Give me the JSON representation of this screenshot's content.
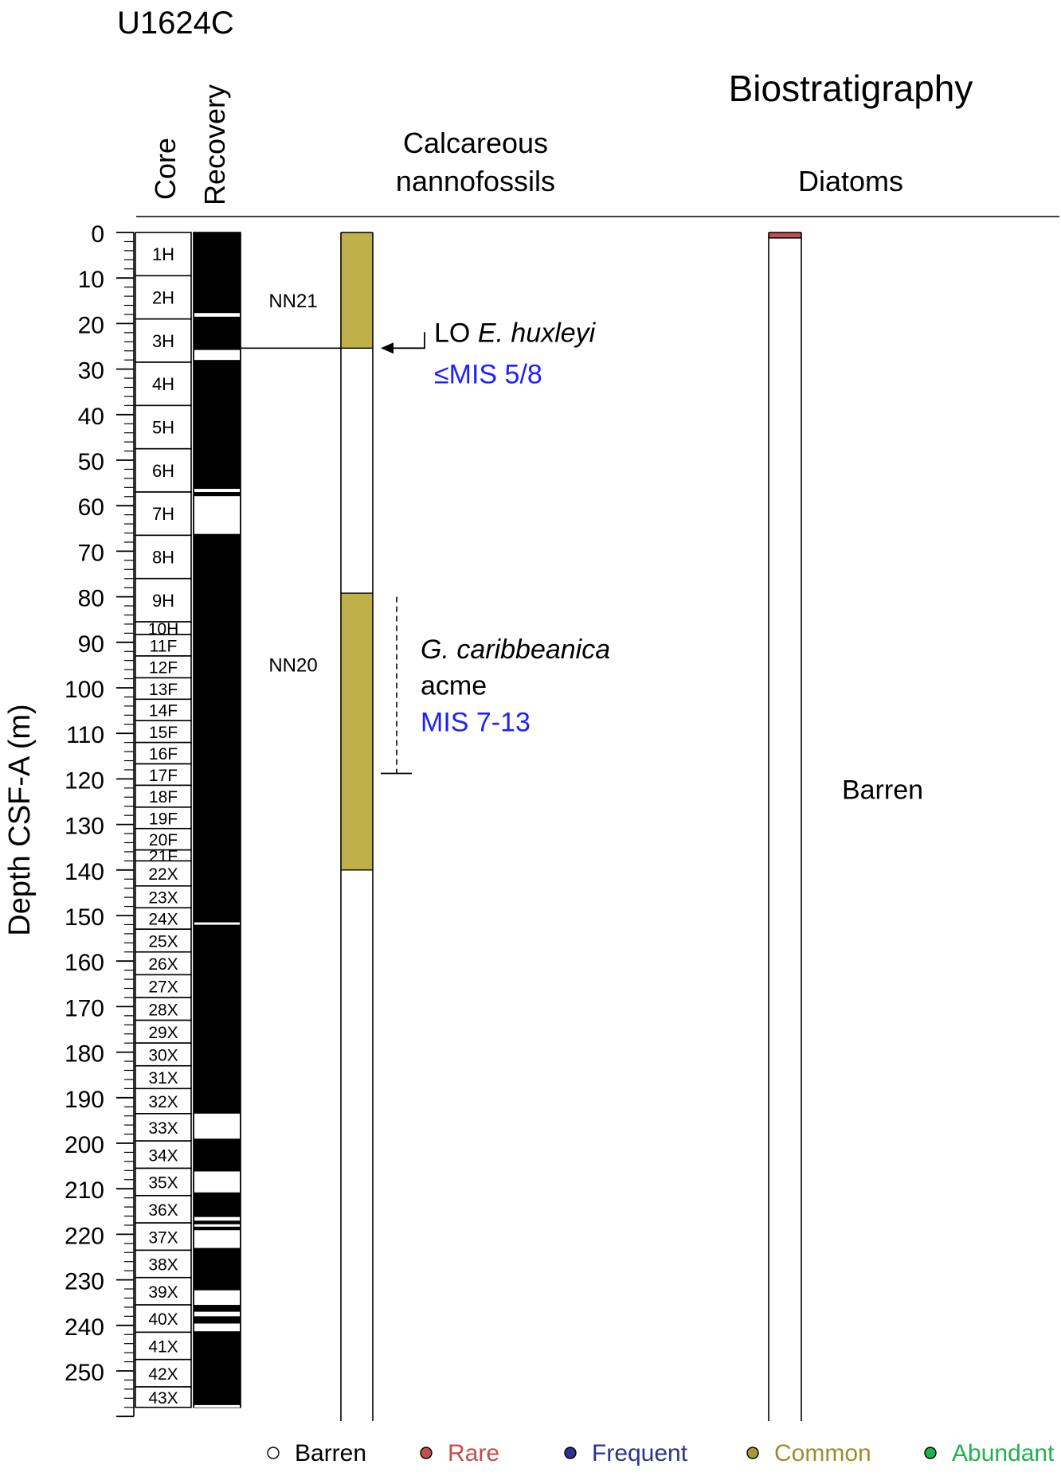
{
  "site": "U1624C",
  "headers": {
    "core": "Core",
    "recovery": "Recovery",
    "biostratigraphy": "Biostratigraphy",
    "calcareous_line1": "Calcareous",
    "calcareous_line2": "nannofossils",
    "diatoms": "Diatoms"
  },
  "chart_data": {
    "type": "stratigraphic-column",
    "ylabel": "Depth CSF-A (m)",
    "ylim": [
      0,
      260
    ],
    "yticks": [
      0,
      10,
      20,
      30,
      40,
      50,
      60,
      70,
      80,
      90,
      100,
      110,
      120,
      130,
      140,
      150,
      160,
      170,
      180,
      190,
      200,
      210,
      220,
      230,
      240,
      250
    ],
    "y_inverted": true,
    "cores": [
      {
        "label": "1H",
        "top": 0,
        "bottom": 9.5
      },
      {
        "label": "2H",
        "top": 9.5,
        "bottom": 19
      },
      {
        "label": "3H",
        "top": 19,
        "bottom": 28.5
      },
      {
        "label": "4H",
        "top": 28.5,
        "bottom": 38
      },
      {
        "label": "5H",
        "top": 38,
        "bottom": 47.5
      },
      {
        "label": "6H",
        "top": 47.5,
        "bottom": 57
      },
      {
        "label": "7H",
        "top": 57,
        "bottom": 66.5
      },
      {
        "label": "8H",
        "top": 66.5,
        "bottom": 76
      },
      {
        "label": "9H",
        "top": 76,
        "bottom": 85.5
      },
      {
        "label": "10H",
        "top": 85.5,
        "bottom": 88.3
      },
      {
        "label": "11F",
        "top": 88.3,
        "bottom": 93
      },
      {
        "label": "12F",
        "top": 93,
        "bottom": 97.8
      },
      {
        "label": "13F",
        "top": 97.8,
        "bottom": 102.5
      },
      {
        "label": "14F",
        "top": 102.5,
        "bottom": 107.2
      },
      {
        "label": "15F",
        "top": 107.2,
        "bottom": 112
      },
      {
        "label": "16F",
        "top": 112,
        "bottom": 116.7
      },
      {
        "label": "17F",
        "top": 116.7,
        "bottom": 121.4
      },
      {
        "label": "18F",
        "top": 121.4,
        "bottom": 126.2
      },
      {
        "label": "19F",
        "top": 126.2,
        "bottom": 130.9
      },
      {
        "label": "20F",
        "top": 130.9,
        "bottom": 135.6
      },
      {
        "label": "21F",
        "top": 135.6,
        "bottom": 138
      },
      {
        "label": "22X",
        "top": 138,
        "bottom": 143.5
      },
      {
        "label": "23X",
        "top": 143.5,
        "bottom": 148.3
      },
      {
        "label": "24X",
        "top": 148.3,
        "bottom": 153
      },
      {
        "label": "25X",
        "top": 153,
        "bottom": 158
      },
      {
        "label": "26X",
        "top": 158,
        "bottom": 163
      },
      {
        "label": "27X",
        "top": 163,
        "bottom": 168
      },
      {
        "label": "28X",
        "top": 168,
        "bottom": 173
      },
      {
        "label": "29X",
        "top": 173,
        "bottom": 178
      },
      {
        "label": "30X",
        "top": 178,
        "bottom": 183
      },
      {
        "label": "31X",
        "top": 183,
        "bottom": 188
      },
      {
        "label": "32X",
        "top": 188,
        "bottom": 193.5
      },
      {
        "label": "33X",
        "top": 193.5,
        "bottom": 199.5
      },
      {
        "label": "34X",
        "top": 199.5,
        "bottom": 205.5
      },
      {
        "label": "35X",
        "top": 205.5,
        "bottom": 211.5
      },
      {
        "label": "36X",
        "top": 211.5,
        "bottom": 217.5
      },
      {
        "label": "37X",
        "top": 217.5,
        "bottom": 223.5
      },
      {
        "label": "38X",
        "top": 223.5,
        "bottom": 229.5
      },
      {
        "label": "39X",
        "top": 229.5,
        "bottom": 235.5
      },
      {
        "label": "40X",
        "top": 235.5,
        "bottom": 241.5
      },
      {
        "label": "41X",
        "top": 241.5,
        "bottom": 247.5
      },
      {
        "label": "42X",
        "top": 247.5,
        "bottom": 253.5
      },
      {
        "label": "43X",
        "top": 253.5,
        "bottom": 258
      }
    ],
    "recovery_total": [
      0,
      258
    ],
    "recovery_gaps": [
      [
        17.7,
        18.5
      ],
      [
        25.8,
        28.0
      ],
      [
        56.3,
        57.0
      ],
      [
        57.9,
        66.2
      ],
      [
        151.5,
        152.0
      ],
      [
        193.5,
        199.0
      ],
      [
        206.2,
        210.8
      ],
      [
        216.2,
        217.0
      ],
      [
        217.8,
        218.3
      ],
      [
        219.1,
        223.0
      ],
      [
        232.3,
        235.5
      ],
      [
        237.0,
        238.0
      ],
      [
        239.6,
        241.3
      ],
      [
        257.5,
        258
      ]
    ],
    "zones": [
      {
        "label": "NN21",
        "depth": 15
      },
      {
        "label": "NN20",
        "depth": 95
      }
    ],
    "zone_boundary_depth": 25.4,
    "nannofossils": [
      {
        "top": 0,
        "bottom": 25.4,
        "abundance": "Common"
      },
      {
        "top": 25.4,
        "bottom": 79.2,
        "abundance": "Barren"
      },
      {
        "top": 79.2,
        "bottom": 140,
        "abundance": "Common"
      },
      {
        "top": 140,
        "bottom": 262,
        "abundance": "Barren"
      }
    ],
    "diatoms": [
      {
        "top": 0,
        "bottom": 1.2,
        "abundance": "Rare"
      },
      {
        "top": 1.2,
        "bottom": 262,
        "abundance": "Barren"
      }
    ],
    "diatoms_note": "Barren",
    "events": [
      {
        "kind": "datum",
        "depth": 25.4,
        "text": "LO ",
        "text_italic": "E. huxleyi",
        "mis": "≤MIS 5/8"
      },
      {
        "kind": "range",
        "top": 80,
        "bottom": 118.8,
        "text_italic": "G. caribbeanica",
        "text": "acme",
        "mis": "MIS 7-13"
      }
    ],
    "legend": [
      {
        "label": "Barren",
        "color": "#ffffff",
        "text_color": "#000000"
      },
      {
        "label": "Rare",
        "color": "#c0504d",
        "text_color": "#c0504d"
      },
      {
        "label": "Frequent",
        "color": "#2e3192",
        "text_color": "#2e3192"
      },
      {
        "label": "Common",
        "color": "#a89a3a",
        "text_color": "#9c8e2a"
      },
      {
        "label": "Abundant",
        "color": "#22b14c",
        "text_color": "#22b14c"
      }
    ],
    "colors": {
      "common_fill": "#bfb04a",
      "rare_fill": "#c0504d",
      "mis_text": "#1f1fff"
    }
  }
}
